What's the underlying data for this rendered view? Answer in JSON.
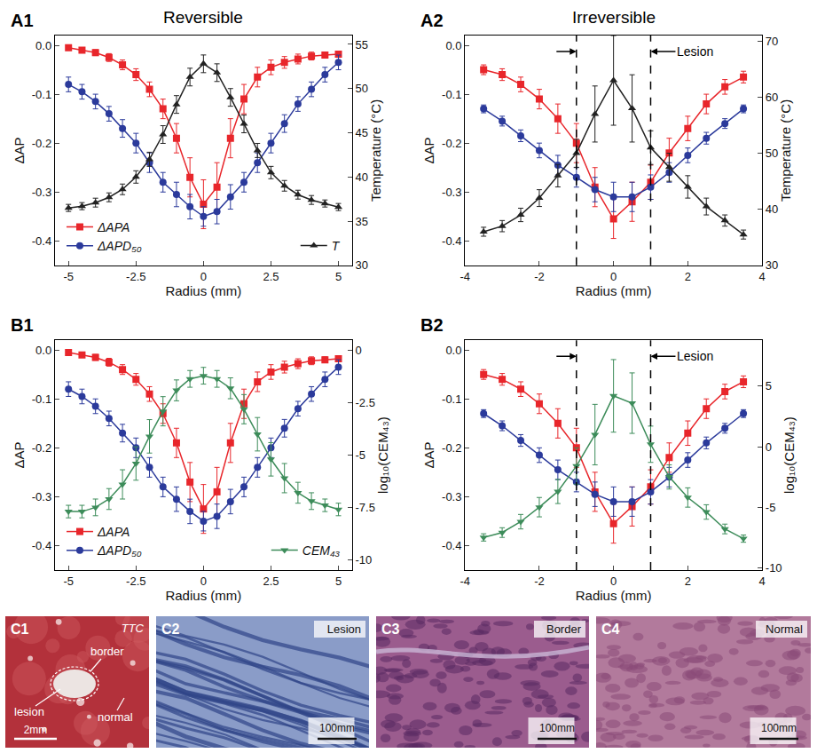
{
  "chart_data": [
    {
      "panel": "A1",
      "type": "line",
      "title": "Reversible",
      "x_label": "Radius (mm)",
      "y_label": "ΔAP",
      "y2_label": "Temperature (°C)",
      "grid": false,
      "x": [
        -5,
        -4.5,
        -4,
        -3.5,
        -3,
        -2.5,
        -2,
        -1.5,
        -1,
        -0.5,
        0,
        0.5,
        1,
        1.5,
        2,
        2.5,
        3,
        3.5,
        4,
        4.5,
        5
      ],
      "xlim": [
        -5.5,
        5.5
      ],
      "xticks": [
        -5,
        -2.5,
        0,
        2.5,
        5
      ],
      "ylim": [
        -0.45,
        0.02
      ],
      "yticks": [
        {
          "value": 0,
          "label": "0.0"
        },
        -0.1,
        -0.2,
        -0.3,
        -0.4
      ],
      "y2lim": [
        30,
        56
      ],
      "y2ticks": [
        30,
        35,
        40,
        45,
        50,
        55
      ],
      "series": [
        {
          "name": "ΔAPA",
          "color": "#e8262b",
          "marker": "square",
          "legend": "lower left",
          "values": [
            -0.005,
            -0.01,
            -0.015,
            -0.025,
            -0.04,
            -0.06,
            -0.09,
            -0.13,
            -0.19,
            -0.27,
            -0.325,
            -0.29,
            -0.19,
            -0.11,
            -0.065,
            -0.045,
            -0.035,
            -0.028,
            -0.022,
            -0.02,
            -0.018
          ],
          "errors": [
            0.005,
            0.005,
            0.006,
            0.008,
            0.01,
            0.012,
            0.015,
            0.02,
            0.03,
            0.04,
            0.05,
            0.05,
            0.04,
            0.03,
            0.02,
            0.015,
            0.012,
            0.01,
            0.008,
            0.006,
            0.005
          ]
        },
        {
          "name": "ΔAPD₅₀",
          "color": "#2b3a9b",
          "marker": "circle",
          "legend": "lower left",
          "values": [
            -0.08,
            -0.095,
            -0.115,
            -0.14,
            -0.17,
            -0.2,
            -0.24,
            -0.28,
            -0.305,
            -0.33,
            -0.35,
            -0.34,
            -0.31,
            -0.28,
            -0.24,
            -0.2,
            -0.16,
            -0.12,
            -0.09,
            -0.06,
            -0.035
          ],
          "errors": [
            0.015,
            0.015,
            0.015,
            0.015,
            0.018,
            0.02,
            0.02,
            0.02,
            0.025,
            0.025,
            0.02,
            0.025,
            0.025,
            0.02,
            0.02,
            0.02,
            0.018,
            0.015,
            0.015,
            0.015,
            0.015
          ]
        },
        {
          "name": "T",
          "axis": "y2",
          "color": "#222222",
          "marker": "triangle-up",
          "legend": "lower right",
          "values": [
            36.5,
            36.7,
            37.1,
            37.7,
            38.6,
            40,
            42,
            44.8,
            48.2,
            51.3,
            52.8,
            51.8,
            49,
            46,
            43,
            40.5,
            39,
            38,
            37.4,
            37,
            36.6
          ],
          "errors": [
            0.4,
            0.4,
            0.5,
            0.5,
            0.6,
            0.7,
            0.8,
            1.0,
            1.0,
            1.0,
            1.0,
            1.0,
            1.0,
            1.0,
            0.8,
            0.7,
            0.6,
            0.5,
            0.5,
            0.4,
            0.4
          ]
        }
      ]
    },
    {
      "panel": "A2",
      "type": "line",
      "title": "Irreversible",
      "x_label": "Radius (mm)",
      "y_label": "ΔAP",
      "y2_label": "Temperature (°C)",
      "grid": false,
      "x": [
        -3.5,
        -3,
        -2.5,
        -2,
        -1.5,
        -1,
        -0.5,
        0,
        0.5,
        1,
        1.5,
        2,
        2.5,
        3,
        3.5
      ],
      "xlim": [
        -4,
        4
      ],
      "xticks": [
        -4,
        -2,
        0,
        2,
        4
      ],
      "ylim": [
        -0.45,
        0.02
      ],
      "yticks": [
        {
          "value": 0,
          "label": "0.0"
        },
        -0.1,
        -0.2,
        -0.3,
        -0.4
      ],
      "y2lim": [
        30,
        71
      ],
      "y2ticks": [
        30,
        40,
        50,
        60,
        70
      ],
      "lesion": {
        "label": "Lesion",
        "x": [
          -1,
          1
        ]
      },
      "series": [
        {
          "name": "ΔAPA",
          "color": "#e8262b",
          "marker": "square",
          "values": [
            -0.05,
            -0.06,
            -0.08,
            -0.11,
            -0.15,
            -0.2,
            -0.29,
            -0.355,
            -0.32,
            -0.28,
            -0.22,
            -0.17,
            -0.12,
            -0.085,
            -0.065
          ],
          "errors": [
            0.01,
            0.012,
            0.015,
            0.02,
            0.03,
            0.04,
            0.04,
            0.04,
            0.04,
            0.035,
            0.03,
            0.025,
            0.02,
            0.015,
            0.012
          ]
        },
        {
          "name": "ΔAPD₅₀",
          "color": "#2b3a9b",
          "marker": "circle",
          "values": [
            -0.13,
            -0.155,
            -0.185,
            -0.215,
            -0.245,
            -0.27,
            -0.295,
            -0.31,
            -0.31,
            -0.29,
            -0.26,
            -0.225,
            -0.19,
            -0.16,
            -0.13
          ],
          "errors": [
            0.008,
            0.01,
            0.012,
            0.015,
            0.02,
            0.02,
            0.025,
            0.03,
            0.03,
            0.025,
            0.02,
            0.015,
            0.012,
            0.01,
            0.008
          ]
        },
        {
          "name": "T",
          "axis": "y2",
          "color": "#222222",
          "marker": "triangle-up",
          "values": [
            36,
            37,
            39,
            42,
            46,
            50,
            57,
            63,
            58,
            51,
            47.5,
            44,
            40.5,
            38,
            35.5
          ],
          "errors": [
            0.8,
            1,
            1.2,
            1.5,
            2,
            2.5,
            5,
            8,
            6,
            3,
            2.5,
            2,
            1.5,
            1,
            0.8
          ]
        }
      ]
    },
    {
      "panel": "B1",
      "type": "line",
      "x_label": "Radius (mm)",
      "y_label": "ΔAP",
      "y2_label": "log₁₀(CEM₄₃)",
      "grid": false,
      "x": [
        -5,
        -4.5,
        -4,
        -3.5,
        -3,
        -2.5,
        -2,
        -1.5,
        -1,
        -0.5,
        0,
        0.5,
        1,
        1.5,
        2,
        2.5,
        3,
        3.5,
        4,
        4.5,
        5
      ],
      "xlim": [
        -5.5,
        5.5
      ],
      "xticks": [
        -5,
        -2.5,
        0,
        2.5,
        5
      ],
      "ylim": [
        -0.45,
        0.02
      ],
      "yticks": [
        {
          "value": 0,
          "label": "0.0"
        },
        -0.1,
        -0.2,
        -0.3,
        -0.4
      ],
      "y2lim": [
        -10.5,
        0.5
      ],
      "y2ticks": [
        -10,
        -7.5,
        -5,
        -2.5,
        0
      ],
      "series": [
        {
          "name": "ΔAPA",
          "color": "#e8262b",
          "marker": "square",
          "legend": "lower left",
          "values": [
            -0.005,
            -0.01,
            -0.015,
            -0.025,
            -0.04,
            -0.06,
            -0.09,
            -0.13,
            -0.19,
            -0.27,
            -0.325,
            -0.29,
            -0.19,
            -0.11,
            -0.065,
            -0.045,
            -0.035,
            -0.028,
            -0.022,
            -0.02,
            -0.018
          ],
          "errors": [
            0.005,
            0.005,
            0.006,
            0.008,
            0.01,
            0.012,
            0.015,
            0.02,
            0.03,
            0.04,
            0.05,
            0.05,
            0.04,
            0.03,
            0.02,
            0.015,
            0.012,
            0.01,
            0.008,
            0.006,
            0.005
          ]
        },
        {
          "name": "ΔAPD₅₀",
          "color": "#2b3a9b",
          "marker": "circle",
          "legend": "lower left",
          "values": [
            -0.08,
            -0.095,
            -0.115,
            -0.14,
            -0.17,
            -0.2,
            -0.24,
            -0.28,
            -0.305,
            -0.33,
            -0.35,
            -0.34,
            -0.31,
            -0.28,
            -0.24,
            -0.2,
            -0.16,
            -0.12,
            -0.09,
            -0.06,
            -0.035
          ],
          "errors": [
            0.015,
            0.015,
            0.015,
            0.015,
            0.018,
            0.02,
            0.02,
            0.02,
            0.025,
            0.025,
            0.02,
            0.025,
            0.025,
            0.02,
            0.02,
            0.02,
            0.018,
            0.015,
            0.015,
            0.015,
            0.015
          ]
        },
        {
          "name": "CEM₄₃",
          "axis": "y2",
          "color": "#3d8c5a",
          "marker": "triangle-down",
          "legend": "lower right",
          "values": [
            -7.7,
            -7.7,
            -7.5,
            -7.1,
            -6.4,
            -5.4,
            -4.1,
            -2.9,
            -1.9,
            -1.35,
            -1.2,
            -1.35,
            -1.8,
            -2.8,
            -4.0,
            -5.2,
            -6.1,
            -6.8,
            -7.2,
            -7.4,
            -7.6
          ],
          "errors": [
            0.3,
            0.3,
            0.4,
            0.5,
            0.7,
            0.8,
            0.8,
            0.7,
            0.5,
            0.4,
            0.4,
            0.4,
            0.5,
            0.7,
            0.8,
            0.8,
            0.7,
            0.5,
            0.4,
            0.3,
            0.3
          ]
        }
      ]
    },
    {
      "panel": "B2",
      "type": "line",
      "x_label": "Radius (mm)",
      "y_label": "ΔAP",
      "y2_label": "log₁₀(CEM₄₃)",
      "grid": false,
      "x": [
        -3.5,
        -3,
        -2.5,
        -2,
        -1.5,
        -1,
        -0.5,
        0,
        0.5,
        1,
        1.5,
        2,
        2.5,
        3,
        3.5
      ],
      "xlim": [
        -4,
        4
      ],
      "xticks": [
        -4,
        -2,
        0,
        2,
        4
      ],
      "ylim": [
        -0.45,
        0.02
      ],
      "yticks": [
        {
          "value": 0,
          "label": "0.0"
        },
        -0.1,
        -0.2,
        -0.3,
        -0.4
      ],
      "y2lim": [
        -10.2,
        8.8
      ],
      "y2ticks": [
        -10,
        -5,
        0,
        5
      ],
      "lesion": {
        "label": "Lesion",
        "x": [
          -1,
          1
        ]
      },
      "series": [
        {
          "name": "ΔAPA",
          "color": "#e8262b",
          "marker": "square",
          "values": [
            -0.05,
            -0.06,
            -0.08,
            -0.11,
            -0.15,
            -0.2,
            -0.29,
            -0.355,
            -0.32,
            -0.28,
            -0.22,
            -0.17,
            -0.12,
            -0.085,
            -0.065
          ],
          "errors": [
            0.01,
            0.012,
            0.015,
            0.02,
            0.03,
            0.04,
            0.04,
            0.04,
            0.04,
            0.035,
            0.03,
            0.025,
            0.02,
            0.015,
            0.012
          ]
        },
        {
          "name": "ΔAPD₅₀",
          "color": "#2b3a9b",
          "marker": "circle",
          "values": [
            -0.13,
            -0.155,
            -0.185,
            -0.215,
            -0.245,
            -0.27,
            -0.295,
            -0.31,
            -0.31,
            -0.29,
            -0.26,
            -0.225,
            -0.19,
            -0.16,
            -0.13
          ],
          "errors": [
            0.008,
            0.01,
            0.012,
            0.015,
            0.02,
            0.02,
            0.025,
            0.03,
            0.03,
            0.025,
            0.02,
            0.015,
            0.012,
            0.01,
            0.008
          ]
        },
        {
          "name": "CEM₄₃",
          "axis": "y2",
          "color": "#3d8c5a",
          "marker": "triangle-down",
          "values": [
            -7.5,
            -7.1,
            -6.2,
            -5.0,
            -3.7,
            -1.6,
            1.0,
            4.2,
            3.6,
            0.2,
            -2.5,
            -4.2,
            -5.4,
            -6.8,
            -7.6
          ],
          "errors": [
            0.3,
            0.4,
            0.6,
            0.8,
            1,
            1.5,
            2.5,
            3,
            2.5,
            1.5,
            1,
            0.8,
            0.6,
            0.4,
            0.3
          ]
        }
      ]
    }
  ],
  "images": [
    {
      "panel": "C1",
      "stain": "TTC",
      "labels": [
        "lesion",
        "border",
        "normal"
      ],
      "scale_bar": "2mm"
    },
    {
      "panel": "C2",
      "label": "Lesion",
      "scale_bar": "100mm"
    },
    {
      "panel": "C3",
      "label": "Border",
      "scale_bar": "100mm"
    },
    {
      "panel": "C4",
      "label": "Normal",
      "scale_bar": "100mm"
    }
  ]
}
